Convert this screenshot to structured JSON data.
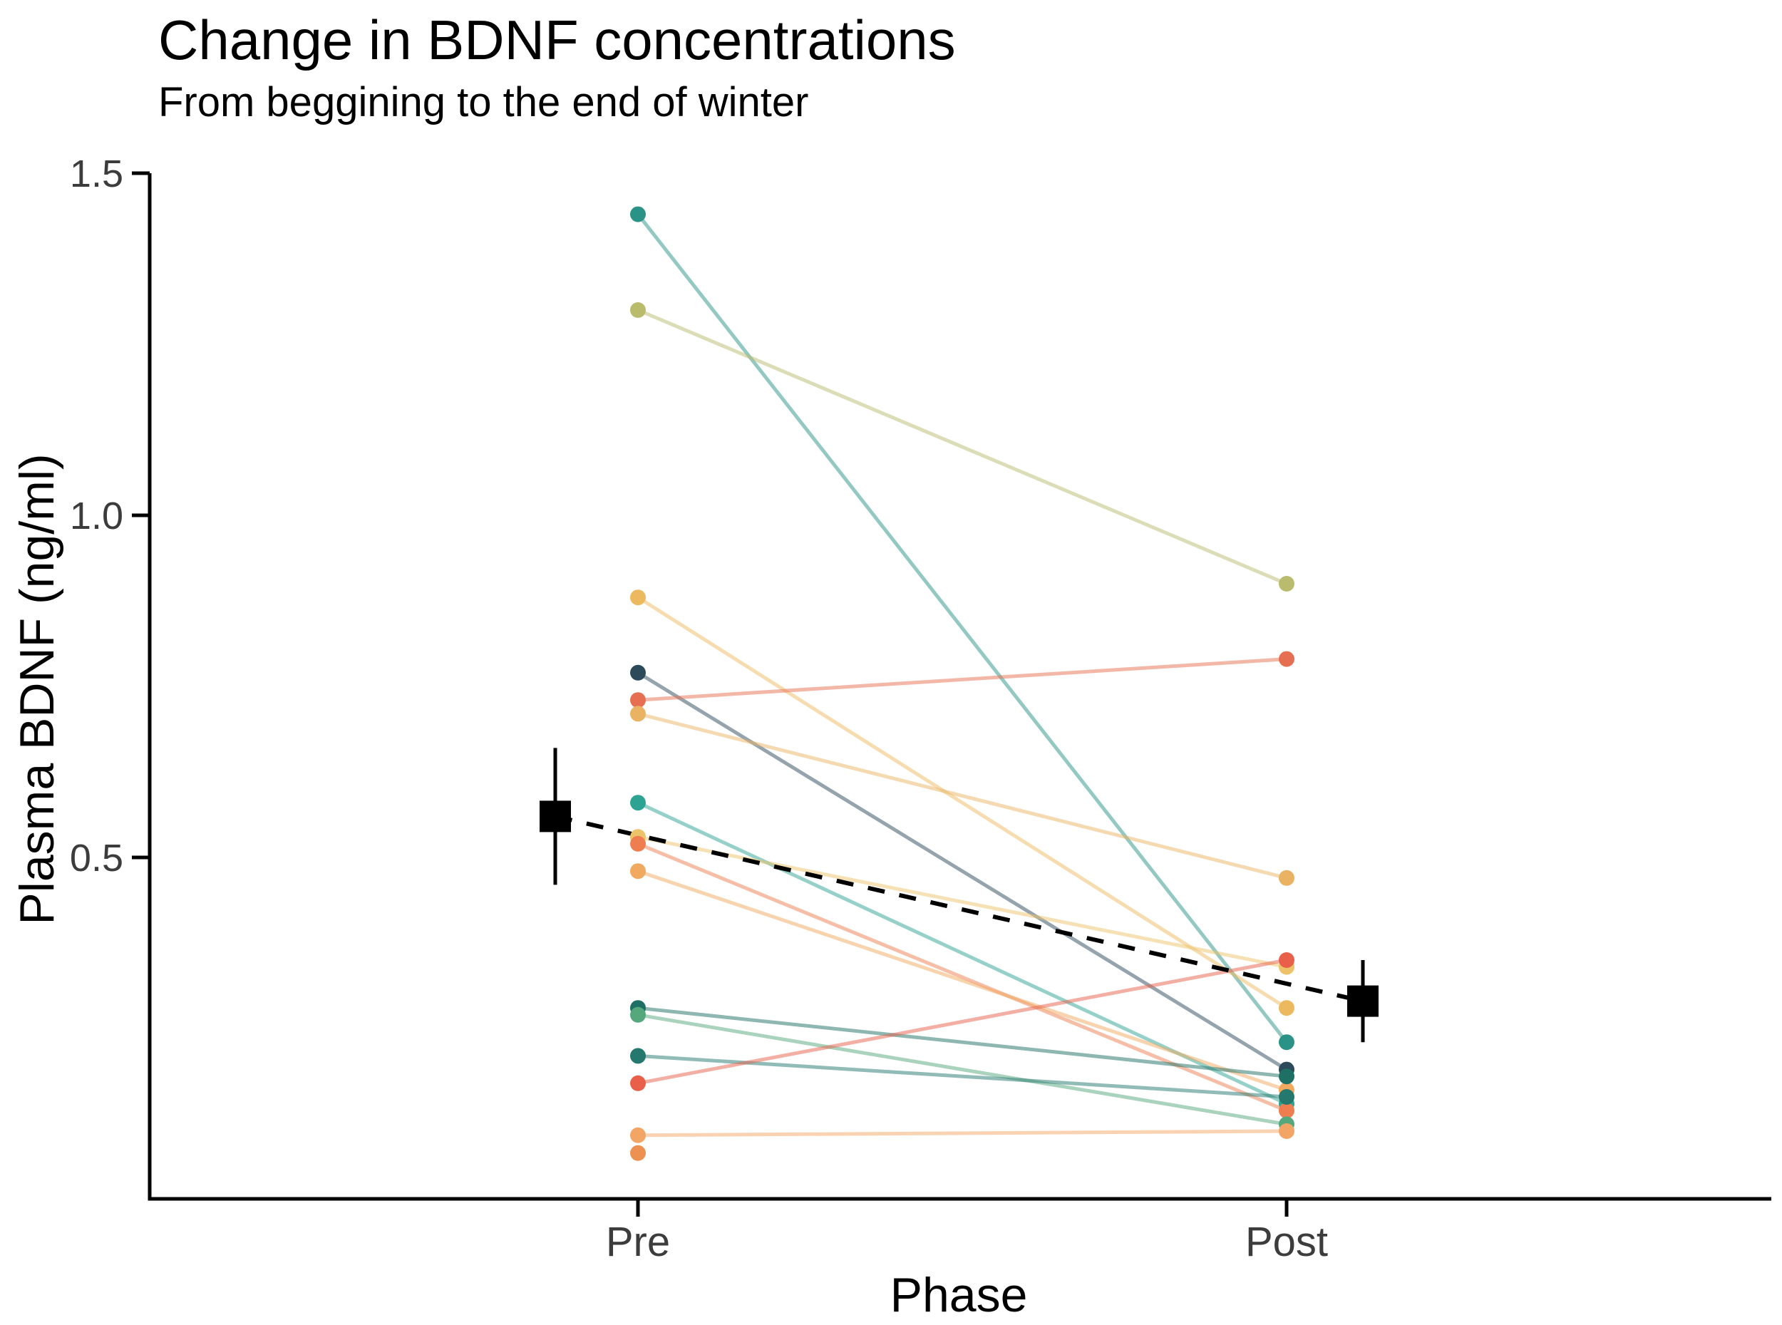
{
  "chart_data": {
    "type": "line",
    "variant": "paired-slope-chart (individual subjects Pre vs Post with mean ± CI overlay)",
    "title": "Change in BDNF concentrations",
    "subtitle": "From beggining to the end of winter",
    "xlabel": "Phase",
    "ylabel": "Plasma BDNF (ng/ml)",
    "x_categories": [
      "Pre",
      "Post"
    ],
    "y_ticks": [
      {
        "value": 0.5,
        "label": "0.5"
      },
      {
        "value": 1.0,
        "label": "1.0"
      },
      {
        "value": 1.5,
        "label": "1.5"
      }
    ],
    "ylim": [
      0.02,
      1.52
    ],
    "grid": "off",
    "legend": "none",
    "series": [
      {
        "id": "subject-01",
        "pre": 1.44,
        "post": 0.23,
        "color": "#2a9286"
      },
      {
        "id": "subject-02",
        "pre": 1.3,
        "post": 0.9,
        "color": "#b9bc6d"
      },
      {
        "id": "subject-03",
        "pre": 0.88,
        "post": 0.28,
        "color": "#edb95e"
      },
      {
        "id": "subject-04",
        "pre": 0.77,
        "post": 0.19,
        "color": "#2c4a59"
      },
      {
        "id": "subject-05",
        "pre": 0.73,
        "post": 0.79,
        "color": "#e76f51"
      },
      {
        "id": "subject-06",
        "pre": 0.71,
        "post": 0.47,
        "color": "#eab364"
      },
      {
        "id": "subject-07",
        "pre": 0.58,
        "post": 0.14,
        "color": "#2da493"
      },
      {
        "id": "subject-08",
        "pre": 0.53,
        "post": 0.34,
        "color": "#ecc369"
      },
      {
        "id": "subject-09",
        "pre": 0.52,
        "post": 0.13,
        "color": "#ee7e4f"
      },
      {
        "id": "subject-10",
        "pre": 0.48,
        "post": 0.16,
        "color": "#f0a95e"
      },
      {
        "id": "subject-11",
        "pre": 0.28,
        "post": 0.18,
        "color": "#1e6f64"
      },
      {
        "id": "subject-12",
        "pre": 0.27,
        "post": 0.11,
        "color": "#55a87c"
      },
      {
        "id": "subject-13",
        "pre": 0.21,
        "post": 0.15,
        "color": "#24786d"
      },
      {
        "id": "subject-14",
        "pre": 0.17,
        "post": 0.35,
        "color": "#e8604a"
      },
      {
        "id": "subject-15",
        "pre": 0.094,
        "post": 0.1,
        "color": "#f3a566"
      },
      {
        "id": "subject-16",
        "pre": 0.068,
        "post": null,
        "color": "#ec9152"
      }
    ],
    "mean_summary": {
      "marker": "black filled square with vertical error bar, dashed black connector line",
      "pre": {
        "mean": 0.56,
        "ci_low": 0.46,
        "ci_high": 0.66
      },
      "post": {
        "mean": 0.29,
        "ci_low": 0.23,
        "ci_high": 0.35
      }
    },
    "colors": {
      "axis": "#000000",
      "tick_text": "#3c3c3c",
      "mean_marker": "#000000",
      "background": "#ffffff"
    }
  }
}
